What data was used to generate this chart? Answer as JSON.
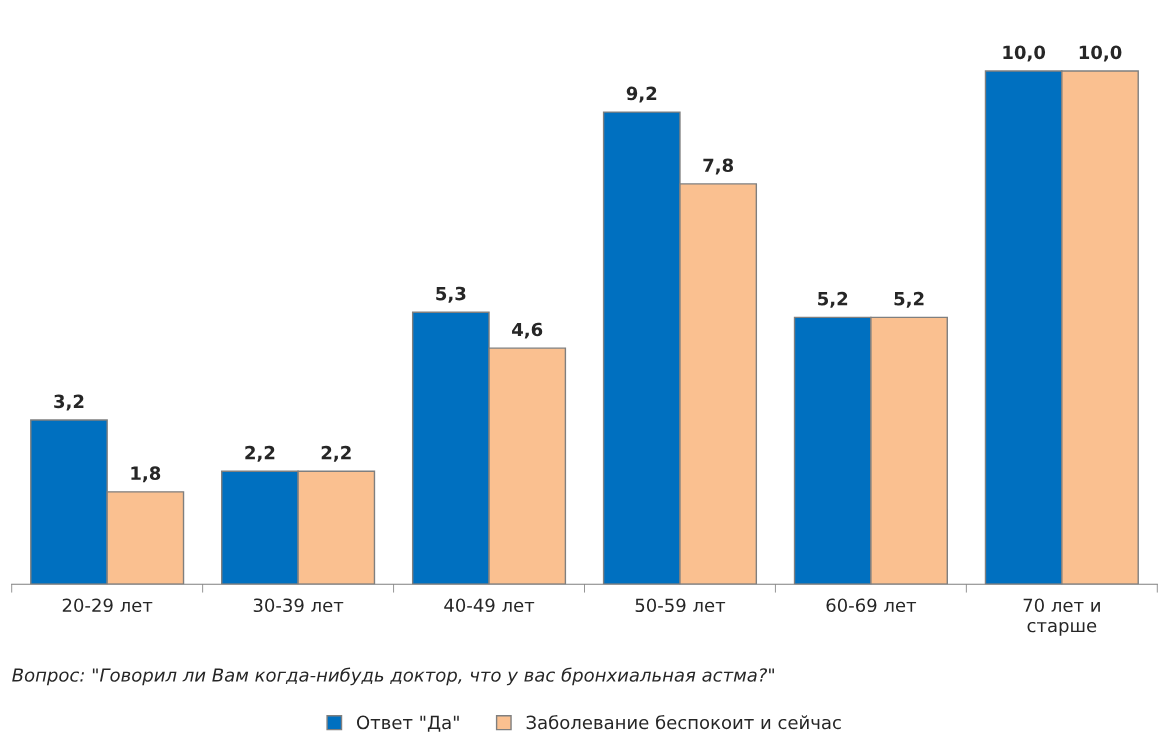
{
  "chart_data": {
    "type": "bar",
    "categories": [
      "20-29 лет",
      "30-39 лет",
      "40-49 лет",
      "50-59 лет",
      "60-69 лет",
      "70 лет и\nстарше"
    ],
    "series": [
      {
        "name": "Ответ \"Да\"",
        "color": "#0070c0",
        "values": [
          3.2,
          2.2,
          5.3,
          9.2,
          5.2,
          10.0
        ],
        "value_labels": [
          "3,2",
          "2,2",
          "5,3",
          "9,2",
          "5,2",
          "10,0"
        ]
      },
      {
        "name": "Заболевание беспокоит и сейчас",
        "color": "#fac090",
        "values": [
          1.8,
          2.2,
          4.6,
          7.8,
          5.2,
          10.0
        ],
        "value_labels": [
          "1,8",
          "2,2",
          "4,6",
          "7,8",
          "5,2",
          "10,0"
        ]
      }
    ],
    "annotations": [
      "Вопрос: \"Говорил ли Вам когда-нибудь доктор, что у вас бронхиальная астма?\""
    ],
    "legend": "bottom",
    "grid": false
  }
}
